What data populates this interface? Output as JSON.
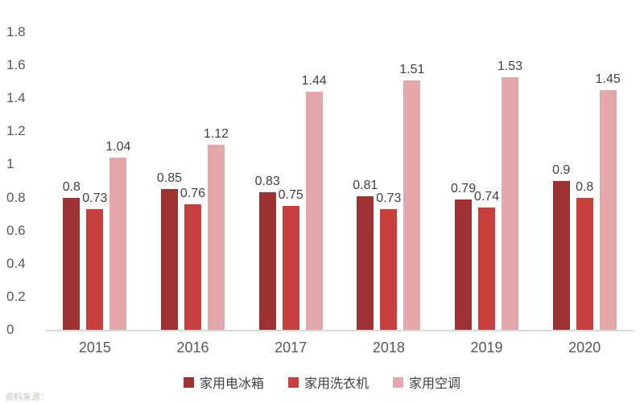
{
  "chart_data": {
    "type": "bar",
    "title": "",
    "xlabel": "",
    "ylabel": "",
    "categories": [
      "2015",
      "2016",
      "2017",
      "2018",
      "2019",
      "2020"
    ],
    "series": [
      {
        "name": "家用电冰箱",
        "color": "#9e3233",
        "values": [
          0.8,
          0.85,
          0.83,
          0.81,
          0.79,
          0.9
        ]
      },
      {
        "name": "家用洗衣机",
        "color": "#c8403e",
        "values": [
          0.73,
          0.76,
          0.75,
          0.73,
          0.74,
          0.8
        ]
      },
      {
        "name": "家用空调",
        "color": "#e4a7a9",
        "values": [
          1.04,
          1.12,
          1.44,
          1.51,
          1.53,
          1.45
        ]
      }
    ],
    "ylim": [
      0,
      1.8
    ],
    "ytick_step": 0.2,
    "yticks": [
      "0",
      "0.2",
      "0.4",
      "0.6",
      "0.8",
      "1",
      "1.2",
      "1.4",
      "1.6",
      "1.8"
    ],
    "grid": false,
    "legend_position": "bottom",
    "axis_line_color": "#d9d9d9",
    "tick_label_color": "#595959",
    "data_label_color": "#3f3f3f"
  },
  "footer": {
    "source_note": "资料来源："
  }
}
